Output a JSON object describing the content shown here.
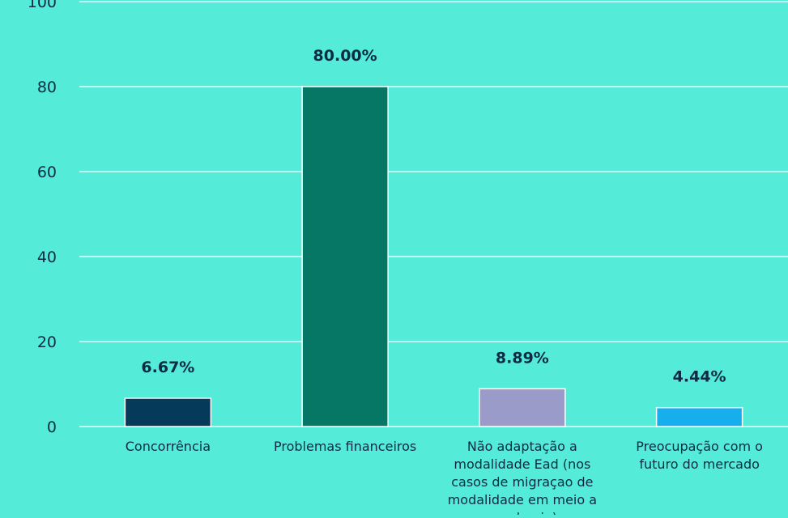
{
  "chart_data": {
    "type": "bar",
    "categories": [
      "Concorrência",
      "Problemas financeiros",
      "Não adaptação a modalidade Ead (nos casos de migraçao de modalidade em meio a pandemia)",
      "Preocupação com o futuro do mercado"
    ],
    "category_lines": [
      [
        "Concorrência"
      ],
      [
        "Problemas financeiros"
      ],
      [
        "Não adaptação a",
        "modalidade Ead (nos",
        "casos de migraçao de",
        "modalidade em meio a",
        "pandemia)"
      ],
      [
        "Preocupação com o",
        "futuro do mercado"
      ]
    ],
    "values": [
      6.67,
      80.0,
      8.89,
      4.44
    ],
    "data_labels": [
      "6.67%",
      "80.00%",
      "8.89%",
      "4.44%"
    ],
    "bar_colors": [
      "#053A5B",
      "#067764",
      "#9B9BC9",
      "#16AEED"
    ],
    "yticks": [
      "0",
      "20",
      "40",
      "60",
      "80",
      "100"
    ],
    "ylim": [
      0,
      100
    ],
    "grid": true,
    "colors": {
      "background": "#54EBD8",
      "grid": "#FFFFFF",
      "text": "#0D2B44"
    }
  }
}
